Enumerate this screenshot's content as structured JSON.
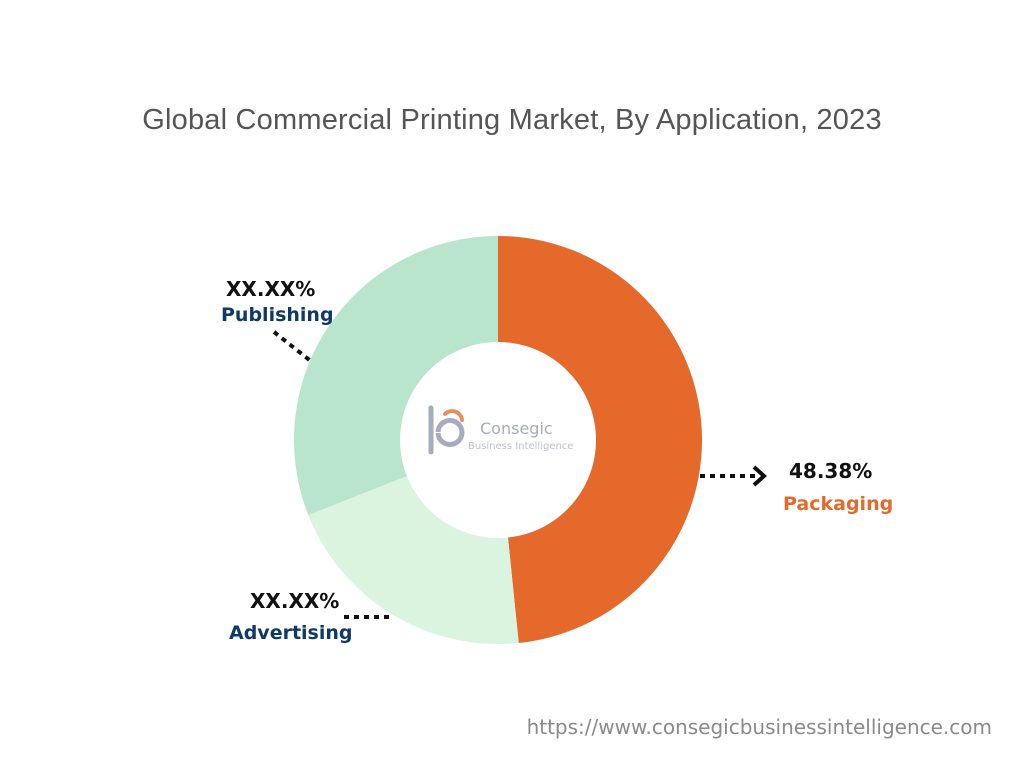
{
  "chart_data": {
    "type": "pie",
    "variant": "donut",
    "title": "Global Commercial Printing Market, By Application, 2023",
    "start_angle_deg": 0,
    "direction": "clockwise",
    "slices": [
      {
        "name": "Packaging",
        "label": "48.38%",
        "value": 48.38,
        "color": "#e4692b",
        "label_color": "#e4692b"
      },
      {
        "name": "Advertising",
        "label": "XX.XX%",
        "value": 20.62,
        "color": "#daf4e0",
        "label_color": "#0e3a63"
      },
      {
        "name": "Publishing",
        "label": "XX.XX%",
        "value": 31.0,
        "color": "#b8e5cb",
        "label_color": "#0e3a63"
      }
    ],
    "legend": "none"
  },
  "watermark": {
    "logo_text": "Consegic",
    "logo_subtext": "Business Intelligence",
    "logo_icon": "consegic-logo-icon"
  },
  "source_url": "https://www.consegicbusinessintelligence.com"
}
